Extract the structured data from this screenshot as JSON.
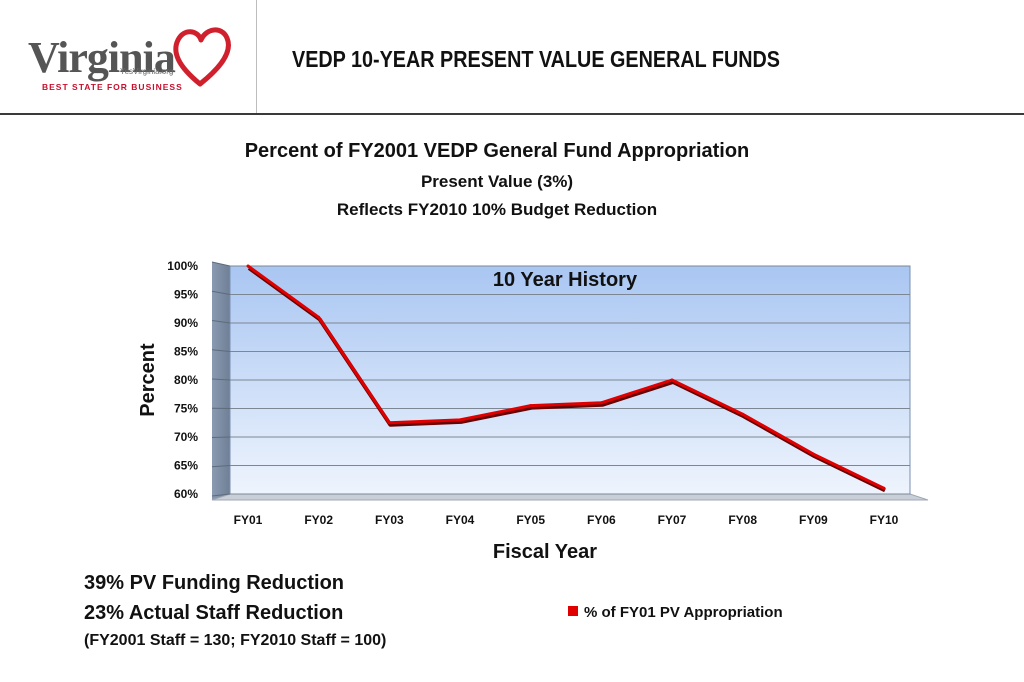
{
  "header": {
    "logo_word": "Virginia",
    "logo_url": "YesVirginia.org",
    "logo_tagline": "BEST STATE FOR BUSINESS",
    "title": "VEDP 10-YEAR PRESENT VALUE GENERAL FUNDS"
  },
  "chart_data": {
    "type": "line",
    "title": "Percent of FY2001 VEDP General Fund Appropriation",
    "subtitle_1": "Present Value (3%)",
    "subtitle_2": "Reflects FY2010 10% Budget Reduction",
    "annotation": "10 Year History",
    "xlabel": "Fiscal Year",
    "ylabel": "Percent",
    "categories": [
      "FY01",
      "FY02",
      "FY03",
      "FY04",
      "FY05",
      "FY06",
      "FY07",
      "FY08",
      "FY09",
      "FY10"
    ],
    "series": [
      {
        "name": "% of FY01 PV Appropriation",
        "values": [
          100,
          91,
          72.5,
          73,
          75.5,
          76,
          80,
          74,
          67,
          61
        ],
        "color": "#e00000"
      }
    ],
    "ylim": [
      60,
      100
    ],
    "yticks": [
      60,
      65,
      70,
      75,
      80,
      85,
      90,
      95,
      100
    ],
    "ytick_labels": [
      "60%",
      "65%",
      "70%",
      "75%",
      "80%",
      "85%",
      "90%",
      "95%",
      "100%"
    ],
    "grid": true,
    "legend": "bottom-right",
    "plot_fill_top": "#a9c6f2",
    "plot_fill_bottom": "#eef4fd"
  },
  "notes": {
    "line1": "39% PV Funding Reduction",
    "line2": "23% Actual Staff Reduction",
    "line3": "(FY2001 Staff = 130;  FY2010 Staff = 100)"
  },
  "legend": {
    "label": "% of FY01 PV Appropriation",
    "color": "#e00000"
  }
}
